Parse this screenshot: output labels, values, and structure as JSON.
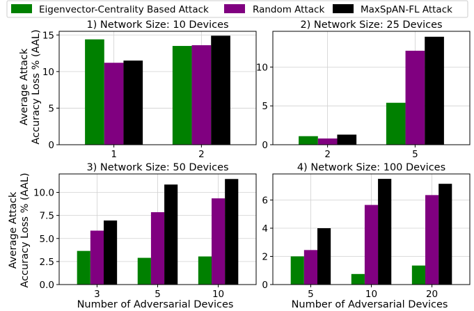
{
  "legend": {
    "placement": "top",
    "entries": [
      {
        "label": "Eigenvector-Centrality Based Attack",
        "color": "#008000"
      },
      {
        "label": "Random Attack",
        "color": "#800080"
      },
      {
        "label": "MaxSpAN-FL Attack",
        "color": "#000000"
      }
    ]
  },
  "shared_labels": {
    "ylabel_line1": "Average Attack",
    "ylabel_line2": "Accuracy Loss % (AAL)",
    "xlabel": "Number of Adversarial Devices"
  },
  "chart_data": [
    {
      "type": "bar",
      "title": "1) Network Size: 10 Devices",
      "categories": [
        "1",
        "2"
      ],
      "series": [
        {
          "name": "Eigenvector-Centrality Based Attack",
          "color": "#008000",
          "values": [
            14.4,
            13.5
          ]
        },
        {
          "name": "Random Attack",
          "color": "#800080",
          "values": [
            11.2,
            13.6
          ]
        },
        {
          "name": "MaxSpAN-FL Attack",
          "color": "#000000",
          "values": [
            11.5,
            14.9
          ]
        }
      ],
      "ylim": [
        0,
        15.5
      ],
      "yticks": [
        "0",
        "5",
        "10",
        "15"
      ],
      "ytick_values": [
        0,
        5,
        10,
        15
      ],
      "grid": true
    },
    {
      "type": "bar",
      "title": "2) Network Size: 25 Devices",
      "categories": [
        "2",
        "5"
      ],
      "series": [
        {
          "name": "Eigenvector-Centrality Based Attack",
          "color": "#008000",
          "values": [
            1.1,
            5.4
          ]
        },
        {
          "name": "Random Attack",
          "color": "#800080",
          "values": [
            0.8,
            12.1
          ]
        },
        {
          "name": "MaxSpAN-FL Attack",
          "color": "#000000",
          "values": [
            1.3,
            13.9
          ]
        }
      ],
      "ylim": [
        0,
        14.6
      ],
      "yticks": [
        "0",
        "5",
        "10"
      ],
      "ytick_values": [
        0,
        5,
        10
      ],
      "grid": true
    },
    {
      "type": "bar",
      "title": "3) Network Size: 50 Devices",
      "categories": [
        "3",
        "5",
        "10"
      ],
      "series": [
        {
          "name": "Eigenvector-Centrality Based Attack",
          "color": "#008000",
          "values": [
            3.65,
            2.9,
            3.05
          ]
        },
        {
          "name": "Random Attack",
          "color": "#800080",
          "values": [
            5.85,
            7.85,
            9.35
          ]
        },
        {
          "name": "MaxSpAN-FL Attack",
          "color": "#000000",
          "values": [
            6.95,
            10.85,
            11.45
          ]
        }
      ],
      "ylim": [
        0,
        12.0
      ],
      "yticks": [
        "0.0",
        "2.5",
        "5.0",
        "7.5",
        "10.0"
      ],
      "ytick_values": [
        0,
        2.5,
        5,
        7.5,
        10
      ],
      "grid": true
    },
    {
      "type": "bar",
      "title": "4) Network Size: 100 Devices",
      "categories": [
        "5",
        "10",
        "20"
      ],
      "series": [
        {
          "name": "Eigenvector-Centrality Based Attack",
          "color": "#008000",
          "values": [
            2.0,
            0.75,
            1.35
          ]
        },
        {
          "name": "Random Attack",
          "color": "#800080",
          "values": [
            2.45,
            5.65,
            6.35
          ]
        },
        {
          "name": "MaxSpAN-FL Attack",
          "color": "#000000",
          "values": [
            4.0,
            7.5,
            7.15
          ]
        }
      ],
      "ylim": [
        0,
        7.85
      ],
      "yticks": [
        "0",
        "2",
        "4",
        "6"
      ],
      "ytick_values": [
        0,
        2,
        4,
        6
      ],
      "grid": true
    }
  ]
}
